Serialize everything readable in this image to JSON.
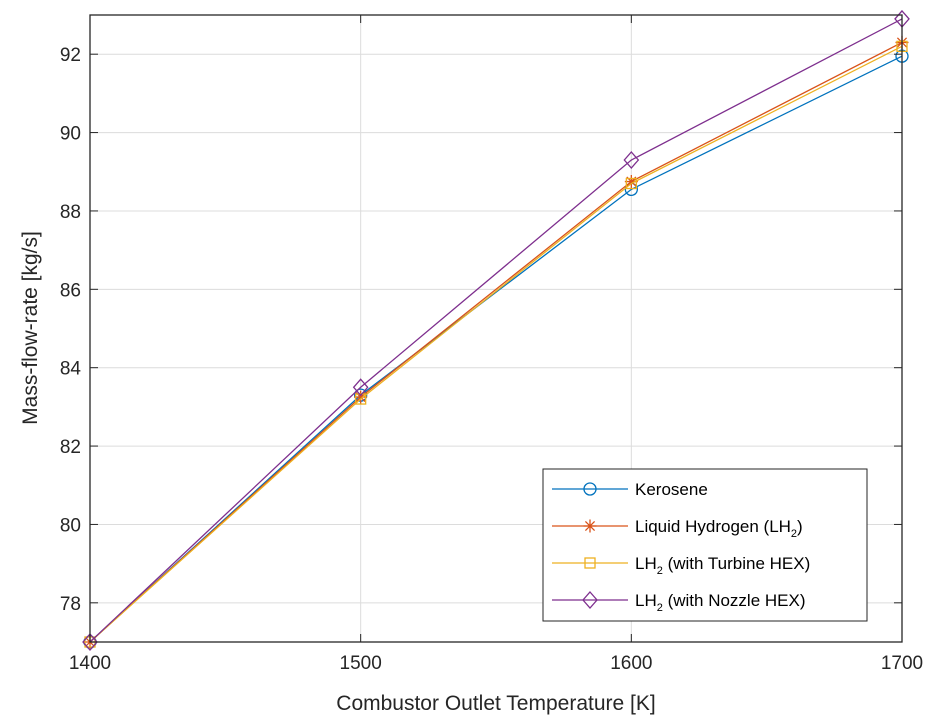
{
  "chart_data": {
    "type": "line",
    "title": "",
    "xlabel": "Combustor Outlet Temperature [K]",
    "ylabel": "Mass-flow-rate [kg/s]",
    "x": [
      1400,
      1500,
      1600,
      1700
    ],
    "xlim": [
      1400,
      1700
    ],
    "ylim": [
      77,
      93
    ],
    "xticks": [
      1400,
      1500,
      1600,
      1700
    ],
    "yticks": [
      78,
      80,
      82,
      84,
      86,
      88,
      90,
      92
    ],
    "grid": true,
    "legend_position": "bottom-right",
    "series": [
      {
        "name": "Kerosene",
        "legend_parts": [
          {
            "text": "Kerosene"
          }
        ],
        "marker": "circle",
        "color": "#0072BD",
        "values": [
          77.0,
          83.3,
          88.55,
          91.95
        ]
      },
      {
        "name": "Liquid Hydrogen (LH2)",
        "legend_parts": [
          {
            "text": "Liquid Hydrogen (LH"
          },
          {
            "text": "2",
            "sub": true
          },
          {
            "text": ")"
          }
        ],
        "marker": "asterisk",
        "color": "#D95319",
        "values": [
          77.0,
          83.25,
          88.75,
          92.3
        ]
      },
      {
        "name": "LH2 (with Turbine HEX)",
        "legend_parts": [
          {
            "text": "LH"
          },
          {
            "text": "2",
            "sub": true
          },
          {
            "text": " (with Turbine HEX)"
          }
        ],
        "marker": "square",
        "color": "#EDB120",
        "values": [
          77.0,
          83.2,
          88.7,
          92.2
        ]
      },
      {
        "name": "LH2 (with Nozzle HEX)",
        "legend_parts": [
          {
            "text": "LH"
          },
          {
            "text": "2",
            "sub": true
          },
          {
            "text": " (with Nozzle HEX)"
          }
        ],
        "marker": "diamond",
        "color": "#7E2F8E",
        "values": [
          77.0,
          83.5,
          89.3,
          92.9
        ]
      }
    ]
  }
}
